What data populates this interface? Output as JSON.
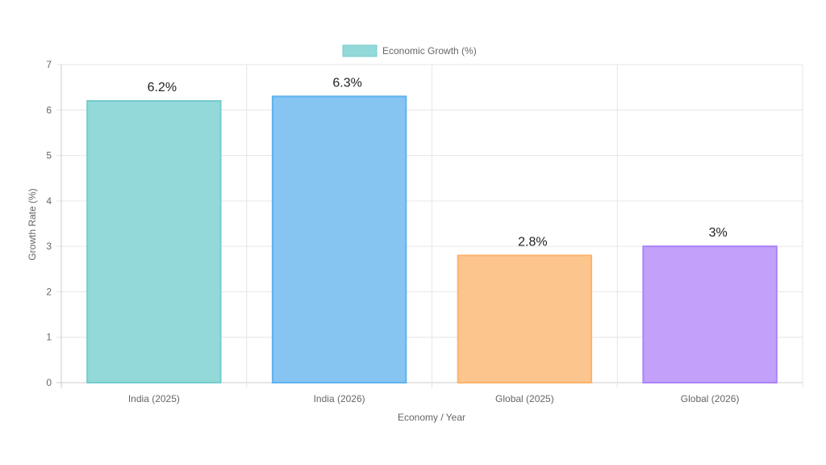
{
  "chart_data": {
    "type": "bar",
    "categories": [
      "India (2025)",
      "India (2026)",
      "Global (2025)",
      "Global (2026)"
    ],
    "series": [
      {
        "name": "Economic Growth (%)",
        "values": [
          6.2,
          6.3,
          2.8,
          3
        ],
        "data_labels": [
          "6.2%",
          "6.3%",
          "2.8%",
          "3%"
        ]
      }
    ],
    "title": "",
    "xlabel": "Economy / Year",
    "ylabel": "Growth Rate (%)",
    "ylim": [
      0,
      7
    ],
    "yticks": [
      "0",
      "1",
      "2",
      "3",
      "4",
      "5",
      "6",
      "7"
    ],
    "grid": true,
    "legend": "top-center",
    "bar_fill_colors": [
      "#93d9d9",
      "#86c4f2",
      "#fdc58e",
      "#c3a1fb"
    ],
    "bar_border_colors": [
      "#74cccc",
      "#5fb3ee",
      "#fdb36d",
      "#a983f9"
    ],
    "grid_color": "#e6e6e6"
  }
}
